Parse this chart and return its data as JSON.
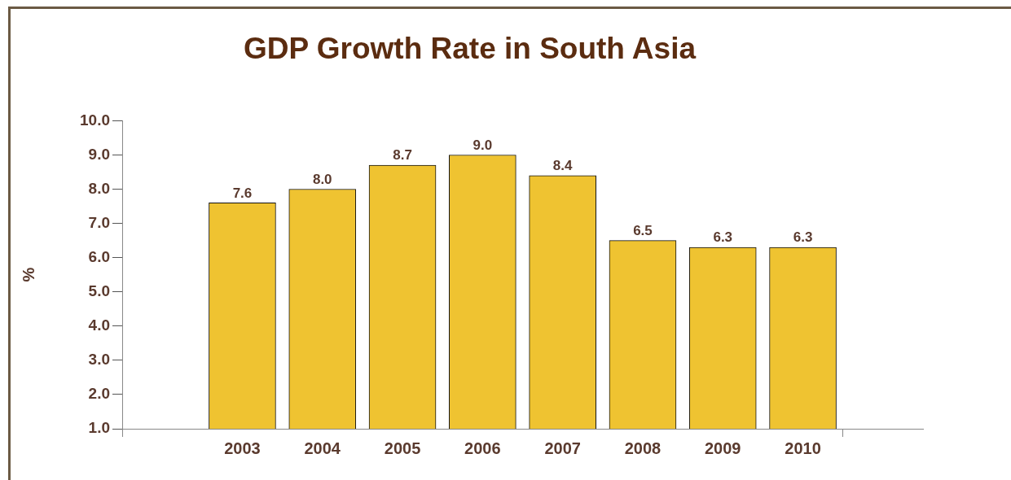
{
  "chart_data": {
    "type": "bar",
    "title": "GDP Growth Rate in South Asia",
    "ylabel": "%",
    "categories": [
      "2003",
      "2004",
      "2005",
      "2006",
      "2007",
      "2008",
      "2009",
      "2010"
    ],
    "values": [
      7.6,
      8.0,
      8.7,
      9.0,
      8.4,
      6.5,
      6.3,
      6.3
    ],
    "value_labels": [
      "7.6",
      "8.0",
      "8.7",
      "9.0",
      "8.4",
      "6.5",
      "6.3",
      "6.3"
    ],
    "color": "#efc331",
    "ylim": [
      1,
      10
    ],
    "yticks": [
      {
        "value": 1,
        "label": "1.0"
      },
      {
        "value": 2,
        "label": "2.0"
      },
      {
        "value": 3,
        "label": "3.0"
      },
      {
        "value": 4,
        "label": "4.0"
      },
      {
        "value": 5,
        "label": "5.0"
      },
      {
        "value": 6,
        "label": "6.0"
      },
      {
        "value": 7,
        "label": "7.0"
      },
      {
        "value": 8,
        "label": "8.0"
      },
      {
        "value": 9,
        "label": "9.0"
      },
      {
        "value": 10,
        "label": "10.0"
      }
    ],
    "grid": false,
    "legend": false
  }
}
